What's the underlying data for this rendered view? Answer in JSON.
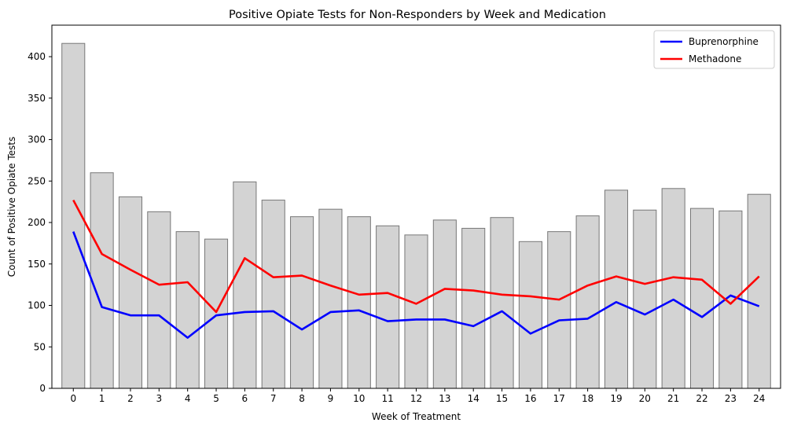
{
  "chart_data": {
    "type": "bar",
    "title": "Positive Opiate Tests for Non-Responders by Week and Medication",
    "xlabel": "Week of Treatment",
    "ylabel": "Count of Positive Opiate Tests",
    "categories": [
      "0",
      "1",
      "2",
      "3",
      "4",
      "5",
      "6",
      "7",
      "8",
      "9",
      "10",
      "11",
      "12",
      "13",
      "14",
      "15",
      "16",
      "17",
      "18",
      "19",
      "20",
      "21",
      "22",
      "23",
      "24"
    ],
    "bar_values": [
      416,
      260,
      231,
      213,
      189,
      180,
      249,
      227,
      207,
      216,
      207,
      196,
      185,
      203,
      193,
      206,
      177,
      189,
      208,
      239,
      215,
      241,
      217,
      214,
      234
    ],
    "bar_color": "#d3d3d3",
    "bar_edge_color": "#777777",
    "series": [
      {
        "name": "Buprenorphine",
        "type": "line",
        "color": "#0000ff",
        "values": [
          189,
          98,
          88,
          88,
          61,
          88,
          92,
          93,
          71,
          92,
          94,
          81,
          83,
          83,
          75,
          93,
          66,
          82,
          84,
          104,
          89,
          107,
          86,
          112,
          99
        ]
      },
      {
        "name": "Methadone",
        "type": "line",
        "color": "#ff0000",
        "values": [
          227,
          162,
          143,
          125,
          128,
          92,
          157,
          134,
          136,
          124,
          113,
          115,
          102,
          120,
          118,
          113,
          111,
          107,
          124,
          135,
          126,
          134,
          131,
          102,
          135
        ]
      }
    ],
    "ylim": [
      0,
      438
    ],
    "yticks": [
      0,
      50,
      100,
      150,
      200,
      250,
      300,
      350,
      400
    ],
    "grid": false,
    "legend": "top-right"
  }
}
